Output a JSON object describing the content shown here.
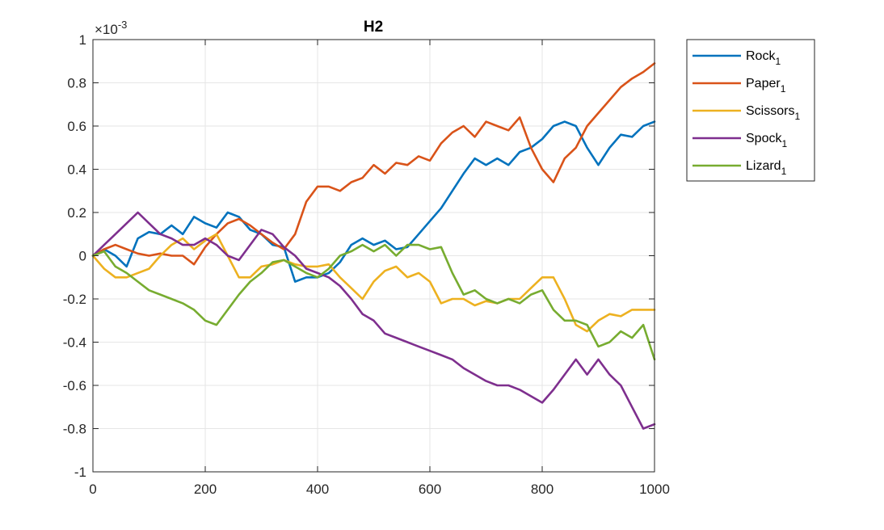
{
  "chart_data": {
    "type": "line",
    "title": "H2",
    "xlabel": "",
    "ylabel": "",
    "xlim": [
      0,
      1000
    ],
    "ylim": [
      -1,
      1
    ],
    "y_multiplier": "×10",
    "y_exponent": "-3",
    "grid": true,
    "legend_position": "outside-top-right",
    "x_ticks": [
      "0",
      "200",
      "400",
      "600",
      "800",
      "1000"
    ],
    "y_ticks": [
      "-1",
      "-0.8",
      "-0.6",
      "-0.4",
      "-0.2",
      "0",
      "0.2",
      "0.4",
      "0.6",
      "0.8",
      "1"
    ],
    "x": [
      0,
      20,
      40,
      60,
      80,
      100,
      120,
      140,
      160,
      180,
      200,
      220,
      240,
      260,
      280,
      300,
      320,
      340,
      360,
      380,
      400,
      420,
      440,
      460,
      480,
      500,
      520,
      540,
      560,
      580,
      600,
      620,
      640,
      660,
      680,
      700,
      720,
      740,
      760,
      780,
      800,
      820,
      840,
      860,
      880,
      900,
      920,
      940,
      960,
      980,
      1000
    ],
    "series": [
      {
        "name": "Rock",
        "subscript": "1",
        "color": "#0072BD",
        "values": [
          0.0,
          0.03,
          0.0,
          -0.05,
          0.08,
          0.11,
          0.1,
          0.14,
          0.1,
          0.18,
          0.15,
          0.13,
          0.2,
          0.18,
          0.12,
          0.1,
          0.05,
          0.04,
          -0.12,
          -0.1,
          -0.1,
          -0.08,
          -0.03,
          0.05,
          0.08,
          0.05,
          0.07,
          0.03,
          0.04,
          0.1,
          0.16,
          0.22,
          0.3,
          0.38,
          0.45,
          0.42,
          0.45,
          0.42,
          0.48,
          0.5,
          0.54,
          0.6,
          0.62,
          0.6,
          0.5,
          0.42,
          0.5,
          0.56,
          0.55,
          0.6,
          0.62
        ]
      },
      {
        "name": "Paper",
        "subscript": "1",
        "color": "#D95319",
        "values": [
          0.0,
          0.03,
          0.05,
          0.03,
          0.01,
          0.0,
          0.01,
          0.0,
          0.0,
          -0.04,
          0.04,
          0.1,
          0.15,
          0.17,
          0.14,
          0.1,
          0.06,
          0.03,
          0.1,
          0.25,
          0.32,
          0.32,
          0.3,
          0.34,
          0.36,
          0.42,
          0.38,
          0.43,
          0.42,
          0.46,
          0.44,
          0.52,
          0.57,
          0.6,
          0.55,
          0.62,
          0.6,
          0.58,
          0.64,
          0.5,
          0.4,
          0.34,
          0.45,
          0.5,
          0.6,
          0.66,
          0.72,
          0.78,
          0.82,
          0.85,
          0.89
        ]
      },
      {
        "name": "Scissors",
        "subscript": "1",
        "color": "#EDB120",
        "values": [
          0.0,
          -0.06,
          -0.1,
          -0.1,
          -0.08,
          -0.06,
          0.0,
          0.05,
          0.08,
          0.03,
          0.07,
          0.1,
          0.0,
          -0.1,
          -0.1,
          -0.05,
          -0.04,
          -0.02,
          -0.04,
          -0.05,
          -0.05,
          -0.04,
          -0.1,
          -0.15,
          -0.2,
          -0.12,
          -0.07,
          -0.05,
          -0.1,
          -0.08,
          -0.12,
          -0.22,
          -0.2,
          -0.2,
          -0.23,
          -0.21,
          -0.22,
          -0.2,
          -0.2,
          -0.15,
          -0.1,
          -0.1,
          -0.2,
          -0.32,
          -0.35,
          -0.3,
          -0.27,
          -0.28,
          -0.25,
          -0.25,
          -0.25
        ]
      },
      {
        "name": "Spock",
        "subscript": "1",
        "color": "#7E2F8E",
        "values": [
          0.0,
          0.05,
          0.1,
          0.15,
          0.2,
          0.15,
          0.1,
          0.08,
          0.05,
          0.05,
          0.08,
          0.05,
          0.0,
          -0.02,
          0.05,
          0.12,
          0.1,
          0.04,
          0.0,
          -0.06,
          -0.08,
          -0.1,
          -0.14,
          -0.2,
          -0.27,
          -0.3,
          -0.36,
          -0.38,
          -0.4,
          -0.42,
          -0.44,
          -0.46,
          -0.48,
          -0.52,
          -0.55,
          -0.58,
          -0.6,
          -0.6,
          -0.62,
          -0.65,
          -0.68,
          -0.62,
          -0.55,
          -0.48,
          -0.55,
          -0.48,
          -0.55,
          -0.6,
          -0.7,
          -0.8,
          -0.78
        ]
      },
      {
        "name": "Lizard",
        "subscript": "1",
        "color": "#77AC30",
        "values": [
          0.0,
          0.02,
          -0.05,
          -0.08,
          -0.12,
          -0.16,
          -0.18,
          -0.2,
          -0.22,
          -0.25,
          -0.3,
          -0.32,
          -0.25,
          -0.18,
          -0.12,
          -0.08,
          -0.03,
          -0.02,
          -0.05,
          -0.08,
          -0.1,
          -0.06,
          0.0,
          0.02,
          0.05,
          0.02,
          0.05,
          0.0,
          0.05,
          0.05,
          0.03,
          0.04,
          -0.08,
          -0.18,
          -0.16,
          -0.2,
          -0.22,
          -0.2,
          -0.22,
          -0.18,
          -0.16,
          -0.25,
          -0.3,
          -0.3,
          -0.32,
          -0.42,
          -0.4,
          -0.35,
          -0.38,
          -0.32,
          -0.48
        ]
      }
    ]
  }
}
